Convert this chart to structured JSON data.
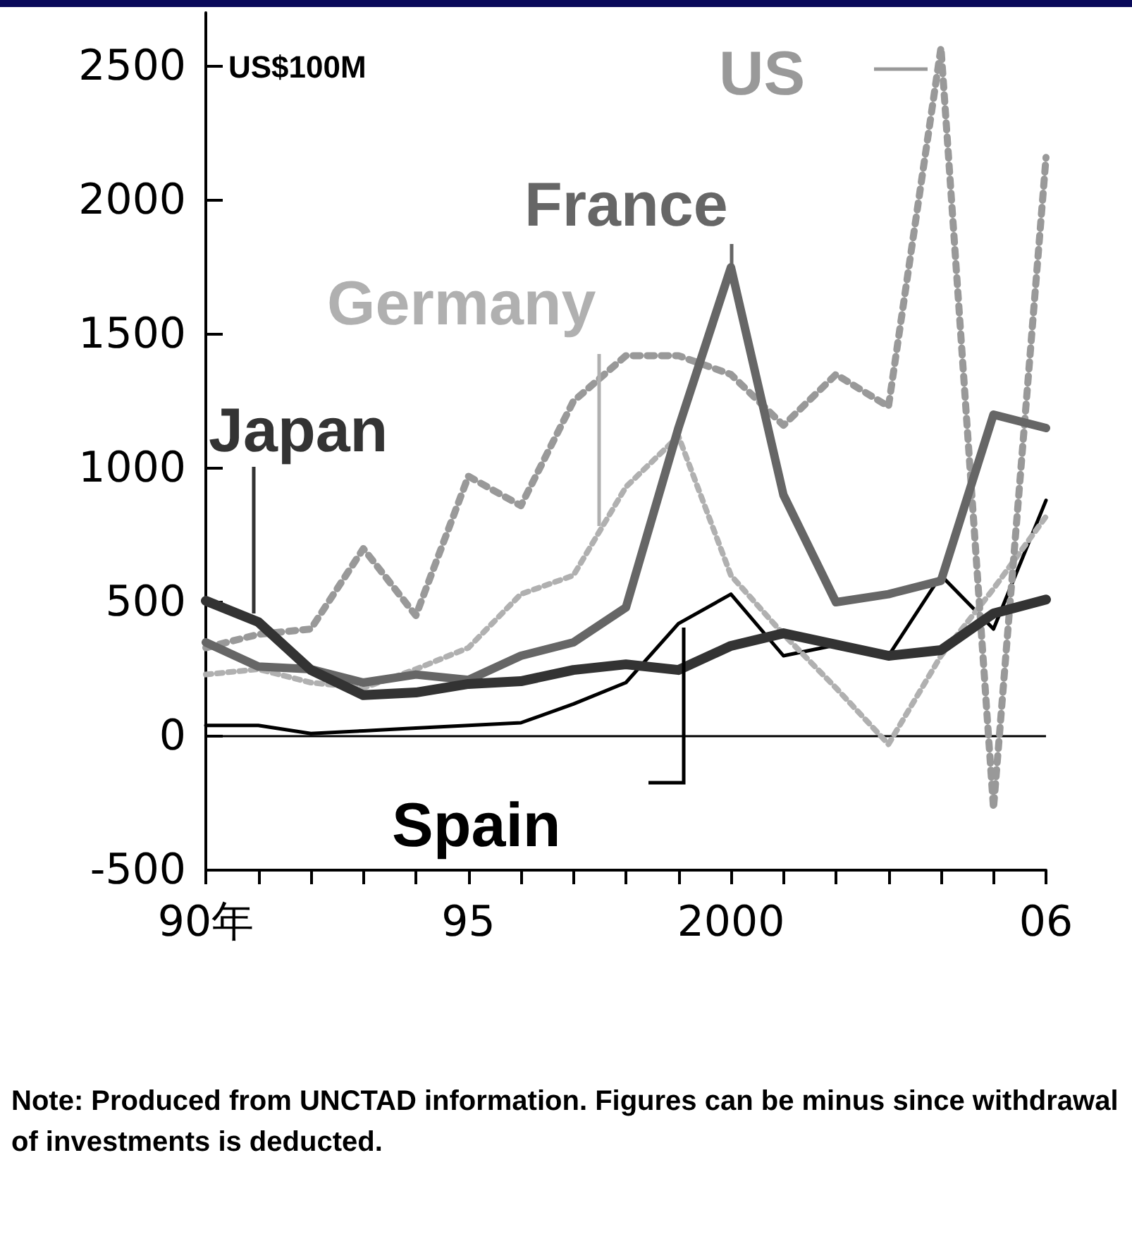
{
  "chart_data": {
    "type": "line",
    "ylabel": "US$100M",
    "categories": [
      "90年",
      null,
      null,
      null,
      null,
      "95",
      null,
      null,
      null,
      null,
      "2000",
      null,
      null,
      null,
      null,
      null,
      "06"
    ],
    "series": [
      {
        "name": "Japan",
        "color": "#333333",
        "line_style": "solid",
        "values": [
          505,
          426,
          247,
          153,
          163,
          195,
          205,
          247,
          268,
          247,
          337,
          384,
          342,
          300,
          321,
          458,
          510
        ]
      },
      {
        "name": "France",
        "color": "#666666",
        "line_style": "solid",
        "values": [
          350,
          260,
          250,
          200,
          230,
          210,
          300,
          350,
          480,
          1150,
          1750,
          900,
          500,
          530,
          580,
          1200,
          1150
        ]
      },
      {
        "name": "US",
        "color": "#999999",
        "line_style": "dotted",
        "values": [
          330,
          380,
          400,
          700,
          450,
          970,
          860,
          1250,
          1420,
          1420,
          1350,
          1160,
          1350,
          1230,
          2570,
          -270,
          2160
        ]
      },
      {
        "name": "Germany",
        "color": "#b0b0b0",
        "line_style": "dotted",
        "values": [
          230,
          250,
          200,
          180,
          250,
          330,
          530,
          600,
          930,
          1120,
          600,
          380,
          180,
          -30,
          300,
          550,
          820
        ]
      },
      {
        "name": "Spain",
        "color": "#000000",
        "line_style": "solid",
        "values": [
          40,
          40,
          10,
          20,
          30,
          40,
          50,
          120,
          200,
          420,
          530,
          300,
          340,
          300,
          600,
          400,
          880
        ]
      }
    ],
    "ylim": [
      -500,
      2700
    ],
    "yticks": [
      -500,
      0,
      500,
      1000,
      1500,
      2000,
      2500
    ],
    "ref_lines": [
      {
        "axis": "y",
        "value": 0
      }
    ],
    "grid": false,
    "marker": "none",
    "annotations": [
      "Note: Produced from UNCTAD information. Figures can be minus since withdrawal of investments is deducted."
    ]
  }
}
